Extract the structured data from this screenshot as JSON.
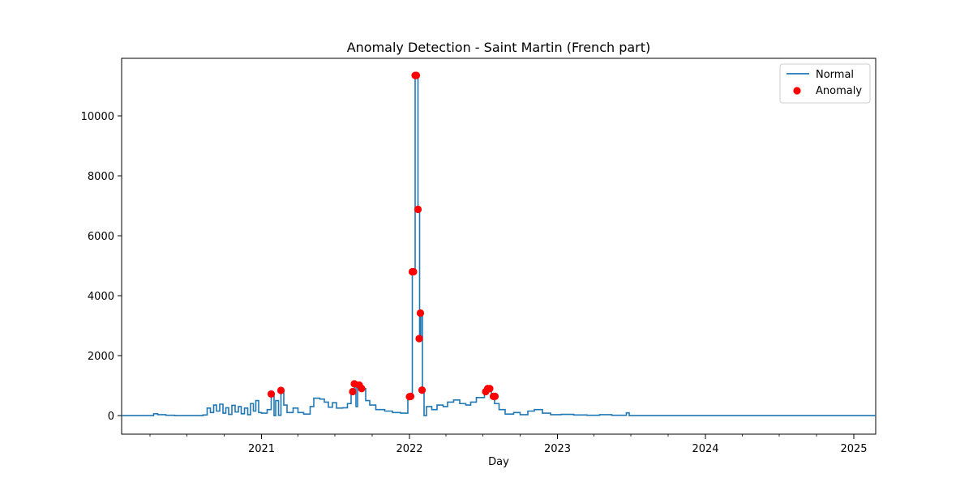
{
  "chart_data": {
    "type": "line",
    "title": "Anomaly Detection - Saint Martin (French part)",
    "xlabel": "Day",
    "ylabel": "",
    "xlim": [
      "2020-01-22",
      "2025-02-24"
    ],
    "ylim": [
      -620,
      11920
    ],
    "x_ticks": [
      {
        "date": "2021-01-01",
        "label": "2021"
      },
      {
        "date": "2022-01-01",
        "label": "2022"
      },
      {
        "date": "2023-01-01",
        "label": "2023"
      },
      {
        "date": "2024-01-01",
        "label": "2024"
      },
      {
        "date": "2025-01-01",
        "label": "2025"
      }
    ],
    "y_ticks": [
      0,
      2000,
      4000,
      6000,
      8000,
      10000
    ],
    "legend": {
      "position": "top-right",
      "entries": [
        {
          "label": "Normal",
          "kind": "line",
          "color": "#1f77b4"
        },
        {
          "label": "Anomaly",
          "kind": "marker",
          "color": "#ff0000"
        }
      ]
    },
    "series": [
      {
        "name": "Normal",
        "style": "step",
        "color": "#1f77b4",
        "points": [
          [
            "2020-01-22",
            0
          ],
          [
            "2020-03-15",
            0
          ],
          [
            "2020-04-10",
            60
          ],
          [
            "2020-04-20",
            30
          ],
          [
            "2020-05-10",
            10
          ],
          [
            "2020-06-01",
            0
          ],
          [
            "2020-08-10",
            20
          ],
          [
            "2020-08-20",
            250
          ],
          [
            "2020-08-28",
            100
          ],
          [
            "2020-09-05",
            350
          ],
          [
            "2020-09-12",
            150
          ],
          [
            "2020-09-20",
            380
          ],
          [
            "2020-09-28",
            80
          ],
          [
            "2020-10-05",
            260
          ],
          [
            "2020-10-12",
            40
          ],
          [
            "2020-10-20",
            340
          ],
          [
            "2020-10-28",
            120
          ],
          [
            "2020-11-05",
            300
          ],
          [
            "2020-11-12",
            60
          ],
          [
            "2020-11-20",
            250
          ],
          [
            "2020-11-28",
            30
          ],
          [
            "2020-12-05",
            400
          ],
          [
            "2020-12-12",
            150
          ],
          [
            "2020-12-18",
            500
          ],
          [
            "2020-12-25",
            100
          ],
          [
            "2021-01-01",
            80
          ],
          [
            "2021-01-15",
            200
          ],
          [
            "2021-01-25",
            720
          ],
          [
            "2021-02-01",
            0
          ],
          [
            "2021-02-05",
            500
          ],
          [
            "2021-02-12",
            10
          ],
          [
            "2021-02-18",
            840
          ],
          [
            "2021-02-25",
            350
          ],
          [
            "2021-03-05",
            100
          ],
          [
            "2021-03-20",
            250
          ],
          [
            "2021-04-01",
            100
          ],
          [
            "2021-04-15",
            50
          ],
          [
            "2021-05-01",
            300
          ],
          [
            "2021-05-10",
            580
          ],
          [
            "2021-05-25",
            550
          ],
          [
            "2021-06-05",
            450
          ],
          [
            "2021-06-15",
            280
          ],
          [
            "2021-06-25",
            430
          ],
          [
            "2021-07-05",
            250
          ],
          [
            "2021-07-20",
            260
          ],
          [
            "2021-08-01",
            400
          ],
          [
            "2021-08-10",
            800
          ],
          [
            "2021-08-18",
            1060
          ],
          [
            "2021-08-22",
            300
          ],
          [
            "2021-08-26",
            1050
          ],
          [
            "2021-09-02",
            1000
          ],
          [
            "2021-09-08",
            900
          ],
          [
            "2021-09-15",
            500
          ],
          [
            "2021-09-25",
            350
          ],
          [
            "2021-10-10",
            200
          ],
          [
            "2021-11-01",
            150
          ],
          [
            "2021-11-20",
            100
          ],
          [
            "2021-12-10",
            80
          ],
          [
            "2021-12-28",
            630
          ],
          [
            "2022-01-03",
            640
          ],
          [
            "2022-01-08",
            4800
          ],
          [
            "2022-01-15",
            11350
          ],
          [
            "2022-01-22",
            6880
          ],
          [
            "2022-01-26",
            2570
          ],
          [
            "2022-01-29",
            3420
          ],
          [
            "2022-02-02",
            850
          ],
          [
            "2022-02-06",
            0
          ],
          [
            "2022-02-12",
            300
          ],
          [
            "2022-02-25",
            200
          ],
          [
            "2022-03-10",
            350
          ],
          [
            "2022-03-25",
            300
          ],
          [
            "2022-04-05",
            450
          ],
          [
            "2022-04-20",
            520
          ],
          [
            "2022-05-05",
            400
          ],
          [
            "2022-05-20",
            350
          ],
          [
            "2022-06-01",
            450
          ],
          [
            "2022-06-15",
            600
          ],
          [
            "2022-07-05",
            800
          ],
          [
            "2022-07-12",
            900
          ],
          [
            "2022-07-22",
            620
          ],
          [
            "2022-07-30",
            400
          ],
          [
            "2022-08-10",
            200
          ],
          [
            "2022-08-25",
            50
          ],
          [
            "2022-09-15",
            100
          ],
          [
            "2022-10-01",
            30
          ],
          [
            "2022-10-20",
            150
          ],
          [
            "2022-11-05",
            200
          ],
          [
            "2022-11-25",
            80
          ],
          [
            "2022-12-15",
            30
          ],
          [
            "2023-01-10",
            40
          ],
          [
            "2023-02-10",
            20
          ],
          [
            "2023-03-15",
            10
          ],
          [
            "2023-04-15",
            30
          ],
          [
            "2023-05-15",
            10
          ],
          [
            "2023-06-20",
            90
          ],
          [
            "2023-06-27",
            0
          ],
          [
            "2025-02-24",
            0
          ]
        ]
      },
      {
        "name": "Anomaly",
        "style": "scatter",
        "color": "#ff0000",
        "points": [
          [
            "2021-01-25",
            720
          ],
          [
            "2021-02-18",
            840
          ],
          [
            "2021-08-14",
            800
          ],
          [
            "2021-08-18",
            1060
          ],
          [
            "2021-08-30",
            1020
          ],
          [
            "2021-09-05",
            900
          ],
          [
            "2022-01-01",
            630
          ],
          [
            "2022-01-04",
            640
          ],
          [
            "2022-01-08",
            4800
          ],
          [
            "2022-01-11",
            4800
          ],
          [
            "2022-01-15",
            11350
          ],
          [
            "2022-01-18",
            11350
          ],
          [
            "2022-01-22",
            6880
          ],
          [
            "2022-01-25",
            2570
          ],
          [
            "2022-01-28",
            3420
          ],
          [
            "2022-02-01",
            850
          ],
          [
            "2022-07-08",
            800
          ],
          [
            "2022-07-13",
            900
          ],
          [
            "2022-07-18",
            900
          ],
          [
            "2022-07-27",
            640
          ],
          [
            "2022-07-31",
            640
          ]
        ]
      }
    ]
  }
}
